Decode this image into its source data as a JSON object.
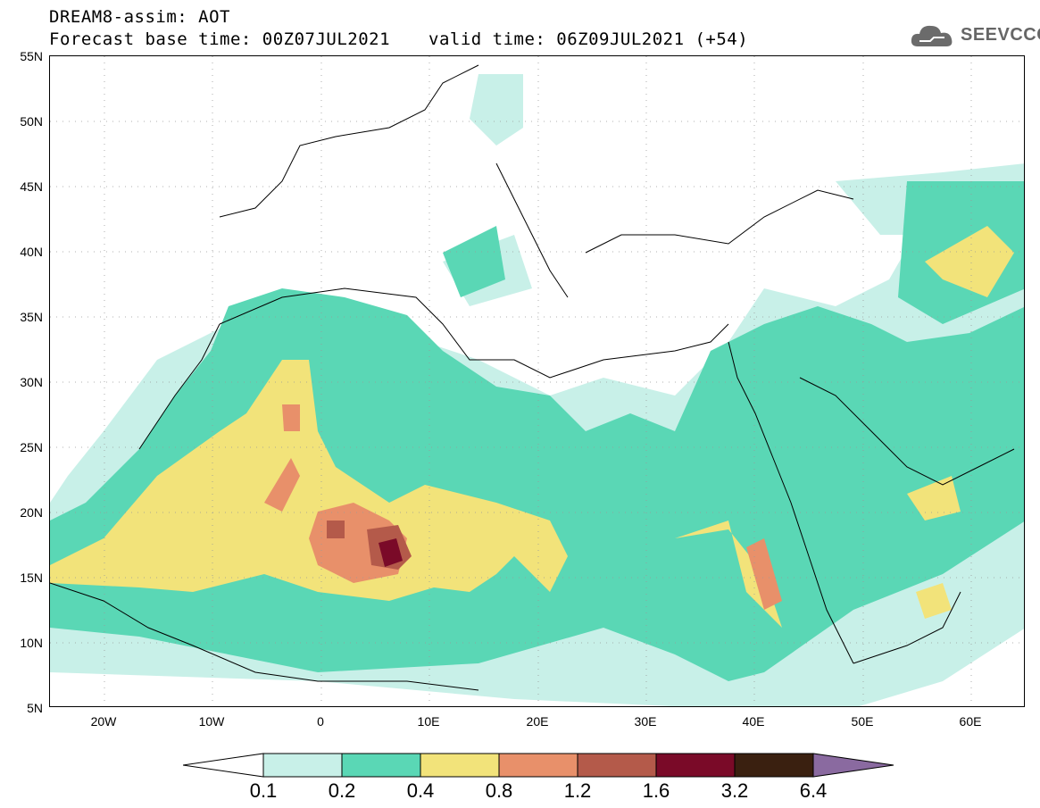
{
  "header": {
    "line1": "DREAM8-assim: AOT",
    "line2": "Forecast base time: 00Z07JUL2021",
    "valid_time": "valid time: 06Z09JUL2021 (+54)",
    "logo_text": "SEEVCCC"
  },
  "map": {
    "lat_labels": [
      "55N",
      "50N",
      "45N",
      "40N",
      "35N",
      "30N",
      "25N",
      "20N",
      "15N",
      "10N",
      "5N"
    ],
    "lon_labels": [
      "20W",
      "10W",
      "0",
      "10E",
      "20E",
      "30E",
      "40E",
      "50E",
      "60E"
    ],
    "lat_range": [
      5,
      55
    ],
    "lon_range": [
      -25,
      65
    ]
  },
  "legend": {
    "levels": [
      "0.1",
      "0.2",
      "0.4",
      "0.8",
      "1.2",
      "1.6",
      "3.2",
      "6.4"
    ],
    "colors": [
      "#c8f0e8",
      "#5ad7b5",
      "#f2e37a",
      "#e8906a",
      "#b45a4a",
      "#7a0a28",
      "#3a2010",
      "#8a6aa0"
    ]
  }
}
